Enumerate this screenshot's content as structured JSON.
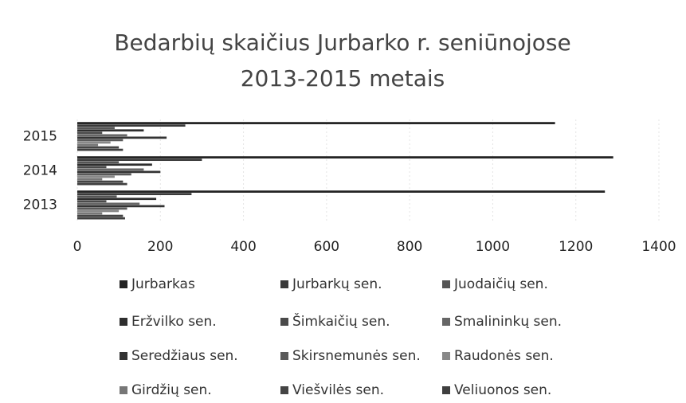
{
  "chart_data": {
    "type": "hbar",
    "title": [
      "Bedarbių skaičius Jurbarko r. seniūnojose",
      "2013-2015 metais"
    ],
    "categories": [
      "2013",
      "2014",
      "2015"
    ],
    "xlim": [
      0,
      1400
    ],
    "xticks": [
      0,
      200,
      400,
      600,
      800,
      1000,
      1200,
      1400
    ],
    "grid": true,
    "series": [
      {
        "name": "Jurbarkas",
        "color": "#222222",
        "values": [
          1270,
          1290,
          1150
        ]
      },
      {
        "name": "Jurbarkų sen.",
        "color": "#3a3a3a",
        "values": [
          275,
          300,
          260
        ]
      },
      {
        "name": "Juodaičių sen.",
        "color": "#555555",
        "values": [
          95,
          100,
          90
        ]
      },
      {
        "name": "Eržvilko sen.",
        "color": "#2e2e2e",
        "values": [
          190,
          180,
          160
        ]
      },
      {
        "name": "Šimkaičių sen.",
        "color": "#4a4a4a",
        "values": [
          70,
          70,
          60
        ]
      },
      {
        "name": "Smalininkų sen.",
        "color": "#666666",
        "values": [
          150,
          160,
          120
        ]
      },
      {
        "name": "Seredžiaus sen.",
        "color": "#333333",
        "values": [
          210,
          200,
          215
        ]
      },
      {
        "name": "Skirsnemunės sen.",
        "color": "#5a5a5a",
        "values": [
          120,
          130,
          110
        ]
      },
      {
        "name": "Raudonės sen.",
        "color": "#888888",
        "values": [
          100,
          90,
          80
        ]
      },
      {
        "name": "Girdžių sen.",
        "color": "#777777",
        "values": [
          60,
          60,
          50
        ]
      },
      {
        "name": "Viešvilės sen.",
        "color": "#444444",
        "values": [
          110,
          110,
          100
        ]
      },
      {
        "name": "Veliuonos sen.",
        "color": "#3f3f3f",
        "values": [
          115,
          120,
          110
        ]
      }
    ]
  }
}
